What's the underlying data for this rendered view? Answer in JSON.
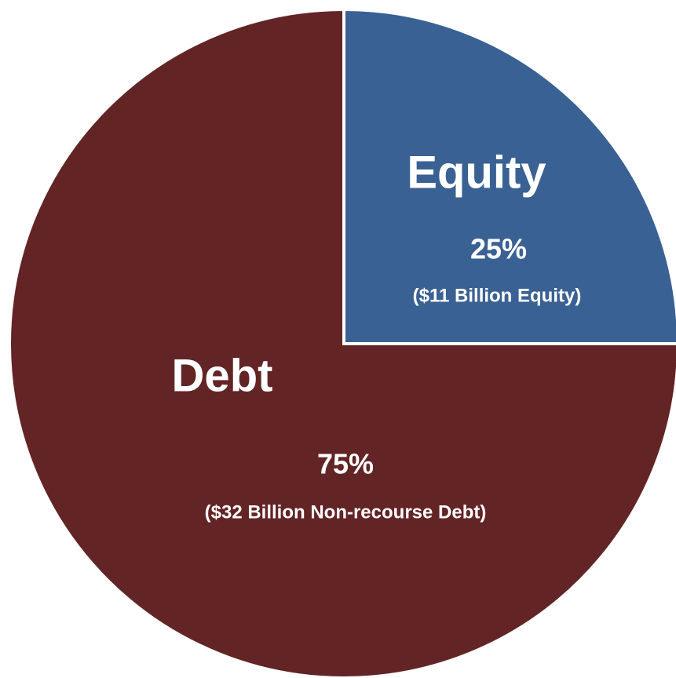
{
  "chart_data": {
    "type": "pie",
    "categories": [
      "Equity",
      "Debt"
    ],
    "values": [
      25,
      75
    ],
    "value_labels": [
      "25%",
      "75%"
    ],
    "annotations": [
      "($11 Billion Equity)",
      "($32 Billion Non-recourse Debt)"
    ],
    "colors": [
      "#3a6193",
      "#632425"
    ]
  }
}
